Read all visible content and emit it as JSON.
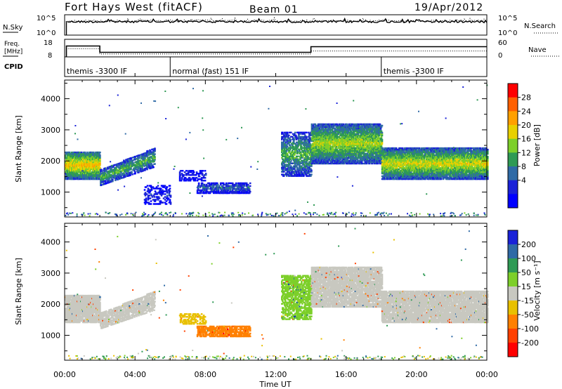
{
  "header": {
    "title": "Fort Hays West (fitACF)",
    "beam": "Beam 01",
    "date": "19/Apr/2012"
  },
  "noise_panel": {
    "left_label": "N.Sky",
    "left_ticks": [
      "10^5",
      "10^0"
    ],
    "right_ticks": [
      "10^5",
      "10^0"
    ],
    "right_label": "N.Search"
  },
  "freq_panel": {
    "left_label_1": "Freq.",
    "left_label_2": "[MHz]",
    "left_ticks": [
      "18",
      "8"
    ],
    "right_ticks": [
      "60",
      "0"
    ],
    "right_label": "Nave"
  },
  "cpid_panel": {
    "label": "CPID",
    "segments": [
      {
        "start_hour": 0.0,
        "text": "themis -3300 IF"
      },
      {
        "start_hour": 6.0,
        "text": "normal (fast) 151 IF"
      },
      {
        "start_hour": 18.0,
        "text": "themis -3300 IF"
      }
    ]
  },
  "x_axis": {
    "label": "Time UT",
    "ticks": [
      "00:00",
      "04:00",
      "08:00",
      "12:00",
      "16:00",
      "20:00",
      "00:00"
    ]
  },
  "chart_data": [
    {
      "type": "line",
      "name": "noise",
      "series": [
        {
          "name": "N.Sky",
          "style": "solid",
          "level": 0.66
        },
        {
          "name": "N.Search",
          "style": "dotted",
          "level": 0.7
        }
      ],
      "x_range_hours": [
        0,
        24
      ]
    },
    {
      "type": "line",
      "name": "frequency_nave",
      "frequency_mhz": [
        {
          "start": 0.1,
          "end": 2.0,
          "value": 14.2
        },
        {
          "start": 2.0,
          "end": 14.0,
          "value": 10.6
        },
        {
          "start": 14.0,
          "end": 24.0,
          "value": 13.8
        }
      ],
      "nave": [
        {
          "start": 0.1,
          "end": 2.0,
          "value": 28
        },
        {
          "start": 2.0,
          "end": 14.0,
          "value": 10
        },
        {
          "start": 14.0,
          "end": 24.0,
          "value": 20
        }
      ],
      "freq_ylim": [
        8,
        18
      ],
      "nave_ylim": [
        0,
        60
      ]
    },
    {
      "type": "heatmap",
      "name": "power",
      "ylabel": "Slant Range [km]",
      "yticks": [
        1000,
        2000,
        3000,
        4000
      ],
      "ylim": [
        200,
        4600
      ],
      "xlabel": "Time UT",
      "colorbar": {
        "label": "Power [dB]",
        "ticks": [
          "28",
          "24",
          "20",
          "16",
          "12",
          "8",
          "4"
        ],
        "colors": [
          "#ff0000",
          "#ff6000",
          "#ffa000",
          "#e8d000",
          "#7dcf2a",
          "#2f9a55",
          "#2f6aa6",
          "#1a22d8",
          "#0000ff"
        ]
      },
      "echo_regions": [
        {
          "t0": 0.0,
          "t1": 2.0,
          "r_top": 2300,
          "r_bot": 1400,
          "peak": 24,
          "density": 0.85
        },
        {
          "t0": 2.0,
          "t1": 5.1,
          "r_top_start": 1700,
          "r_top_end": 2400,
          "r_bot_start": 1200,
          "r_bot_end": 1800,
          "peak": 16,
          "density": 0.6
        },
        {
          "t0": 4.5,
          "t1": 6.0,
          "r_top": 1200,
          "r_bot": 600,
          "peak": 6,
          "density": 0.3
        },
        {
          "t0": 6.5,
          "t1": 8.0,
          "r_top": 1700,
          "r_bot": 1350,
          "peak": 6,
          "density": 0.35
        },
        {
          "t0": 7.5,
          "t1": 10.5,
          "r_top": 1300,
          "r_bot": 950,
          "peak": 10,
          "density": 0.6
        },
        {
          "t0": 12.3,
          "t1": 14.0,
          "r_top": 2900,
          "r_bot": 1500,
          "peak": 16,
          "density": 0.55
        },
        {
          "t0": 14.0,
          "t1": 18.0,
          "r_top": 3200,
          "r_bot": 1900,
          "peak": 20,
          "density": 0.75
        },
        {
          "t0": 18.0,
          "t1": 24.0,
          "r_top": 2400,
          "r_bot": 1400,
          "peak": 22,
          "density": 0.8
        }
      ]
    },
    {
      "type": "heatmap",
      "name": "velocity",
      "ylabel": "Slant Range [km]",
      "yticks": [
        1000,
        2000,
        3000,
        4000
      ],
      "ylim": [
        200,
        4600
      ],
      "xlabel": "Time UT",
      "colorbar": {
        "label": "Velocity [m s⁻¹]",
        "ticks": [
          "200",
          "100",
          "50",
          "15",
          "-15",
          "-50",
          "-100",
          "-200"
        ],
        "colors": [
          "#1a22d8",
          "#2f6aa6",
          "#2f9a55",
          "#7dcf2a",
          "#c8c8c0",
          "#e8c000",
          "#ff8000",
          "#ff4000",
          "#ff0000"
        ]
      },
      "echo_regions": [
        {
          "t0": 0.0,
          "t1": 2.0,
          "r_top": 2300,
          "r_bot": 1400,
          "vel": 0,
          "density": 0.85
        },
        {
          "t0": 2.0,
          "t1": 5.1,
          "r_top_start": 1700,
          "r_top_end": 2400,
          "r_bot_start": 1200,
          "r_bot_end": 1800,
          "vel": 0,
          "density": 0.6
        },
        {
          "t0": 6.5,
          "t1": 8.0,
          "r_top": 1700,
          "r_bot": 1350,
          "vel": -40,
          "density": 0.35
        },
        {
          "t0": 7.5,
          "t1": 10.5,
          "r_top": 1300,
          "r_bot": 950,
          "vel": -60,
          "density": 0.6
        },
        {
          "t0": 12.3,
          "t1": 14.0,
          "r_top": 2900,
          "r_bot": 1500,
          "vel": 40,
          "density": 0.55
        },
        {
          "t0": 14.0,
          "t1": 18.0,
          "r_top": 3200,
          "r_bot": 1900,
          "vel": 0,
          "density": 0.75
        },
        {
          "t0": 18.0,
          "t1": 24.0,
          "r_top": 2400,
          "r_bot": 1400,
          "vel": 0,
          "density": 0.8
        }
      ]
    }
  ]
}
